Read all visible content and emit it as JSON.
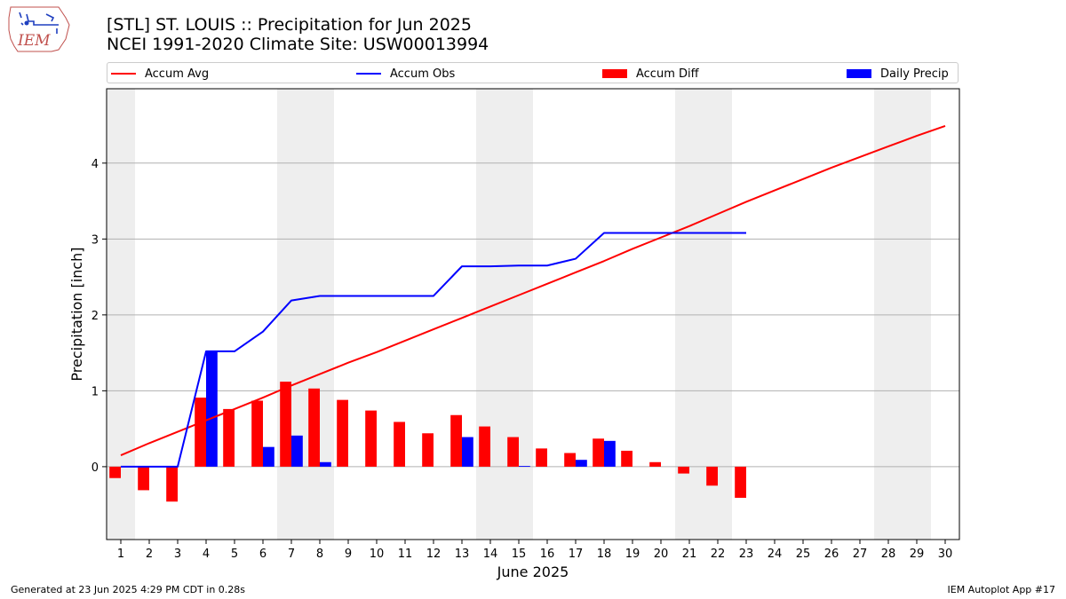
{
  "header": {
    "title": "[STL] ST. LOUIS :: Precipitation for Jun 2025",
    "subtitle": "NCEI 1991-2020 Climate Site: USW00013994",
    "logo_text": "IEM"
  },
  "footer": {
    "generated": "Generated at 23 Jun 2025 4:29 PM CDT in 0.28s",
    "app": "IEM Autoplot App #17"
  },
  "legend": {
    "items": [
      {
        "label": "Accum Avg",
        "kind": "line",
        "color": "#ff0000"
      },
      {
        "label": "Accum Obs",
        "kind": "line",
        "color": "#0000ff"
      },
      {
        "label": "Accum Diff",
        "kind": "box",
        "color": "#ff0000"
      },
      {
        "label": "Daily Precip",
        "kind": "box",
        "color": "#0000ff"
      }
    ]
  },
  "chart_data": {
    "type": "bar",
    "xlabel": "June 2025",
    "ylabel": "Precipitation [inch]",
    "xlim": [
      0.5,
      30.5
    ],
    "ylim": [
      -0.96,
      4.98
    ],
    "yticks": [
      0,
      1,
      2,
      3,
      4
    ],
    "days": [
      1,
      2,
      3,
      4,
      5,
      6,
      7,
      8,
      9,
      10,
      11,
      12,
      13,
      14,
      15,
      16,
      17,
      18,
      19,
      20,
      21,
      22,
      23,
      24,
      25,
      26,
      27,
      28,
      29,
      30
    ],
    "weekend_days": [
      1,
      7,
      8,
      14,
      15,
      21,
      22,
      28,
      29
    ],
    "grid": "horizontal",
    "series": [
      {
        "name": "Accum Avg",
        "type": "line",
        "color": "#ff0000",
        "values": [
          0.15,
          0.31,
          0.46,
          0.61,
          0.76,
          0.91,
          1.07,
          1.22,
          1.37,
          1.51,
          1.66,
          1.81,
          1.96,
          2.11,
          2.26,
          2.41,
          2.56,
          2.71,
          2.87,
          3.02,
          3.17,
          3.33,
          3.49,
          3.64,
          3.79,
          3.94,
          4.08,
          4.22,
          4.36,
          4.49
        ]
      },
      {
        "name": "Accum Obs",
        "type": "line",
        "color": "#0000ff",
        "values": [
          0.0,
          0.0,
          0.0,
          1.52,
          1.52,
          1.78,
          2.19,
          2.25,
          2.25,
          2.25,
          2.25,
          2.25,
          2.64,
          2.64,
          2.65,
          2.65,
          2.74,
          3.08,
          3.08,
          3.08,
          3.08,
          3.08,
          3.08
        ]
      },
      {
        "name": "Accum Diff",
        "type": "bar",
        "color": "#ff0000",
        "values": [
          -0.15,
          -0.31,
          -0.46,
          0.91,
          0.76,
          0.87,
          1.12,
          1.03,
          0.88,
          0.74,
          0.59,
          0.44,
          0.68,
          0.53,
          0.39,
          0.24,
          0.18,
          0.37,
          0.21,
          0.06,
          -0.09,
          -0.25,
          -0.41
        ]
      },
      {
        "name": "Daily Precip",
        "type": "bar",
        "color": "#0000ff",
        "values": [
          0.0,
          0.0,
          0.0,
          1.52,
          0.0,
          0.26,
          0.41,
          0.06,
          0.0,
          0.0,
          0.0,
          0.0,
          0.39,
          0.0,
          0.01,
          0.0,
          0.09,
          0.34,
          0.0,
          0.0,
          0.0,
          0.0,
          0.0
        ]
      }
    ]
  }
}
